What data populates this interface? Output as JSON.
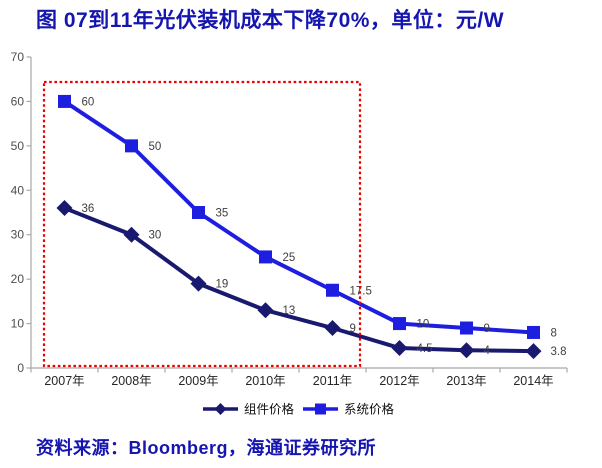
{
  "title": "图 07到11年光伏装机成本下降70%，单位：元/W",
  "source": "资料来源：Bloomberg，海通证券研究所",
  "colors": {
    "title_text": "#1515b0",
    "module_series": "#191970",
    "system_series": "#1e1ee0",
    "highlight_box": "#ee0000",
    "axis": "#a8a8a8",
    "tick_label": "#4d4d4d",
    "data_label": "#404040"
  },
  "chart_data": {
    "type": "line",
    "title": "图 07到11年光伏装机成本下降70%，单位：元/W",
    "xlabel": "",
    "ylabel": "",
    "unit": "元/W",
    "categories": [
      "2007年",
      "2008年",
      "2009年",
      "2010年",
      "2011年",
      "2012年",
      "2013年",
      "2014年"
    ],
    "series": [
      {
        "name": "组件价格",
        "marker": "diamond",
        "color": "#191970",
        "values": [
          36,
          30,
          19,
          13,
          9,
          4.5,
          4,
          3.8
        ]
      },
      {
        "name": "系统价格",
        "marker": "square",
        "color": "#1e1ee0",
        "values": [
          60,
          50,
          35,
          25,
          17.5,
          10,
          9,
          8
        ]
      }
    ],
    "ylim": [
      0,
      70
    ],
    "ytick_step": 10,
    "yticks": [
      0,
      10,
      20,
      30,
      40,
      50,
      60,
      70
    ],
    "grid": false,
    "legend_position": "bottom",
    "data_labels": true,
    "highlight_box": {
      "style": "dotted",
      "color": "#ee0000",
      "from_category": "2007年",
      "to_category": "2011年"
    }
  }
}
